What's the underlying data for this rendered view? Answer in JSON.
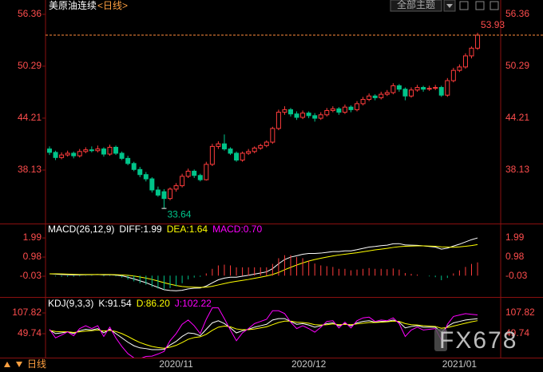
{
  "ui": {
    "toolbar": "全部主题",
    "footer": "日线",
    "watermark": "FX678"
  },
  "chart_data": [
    {
      "type": "candlestick",
      "title": "美原油连续",
      "subtitle": "<日线>",
      "categories": [
        null,
        null,
        null,
        null,
        null,
        null,
        null,
        null,
        null,
        null,
        null,
        null,
        null,
        null,
        null,
        null,
        null,
        null,
        null,
        null,
        null,
        "2020/11",
        null,
        null,
        null,
        null,
        null,
        null,
        null,
        null,
        null,
        null,
        null,
        null,
        null,
        null,
        null,
        null,
        null,
        null,
        null,
        null,
        null,
        "2020/12",
        null,
        null,
        null,
        null,
        null,
        null,
        null,
        null,
        null,
        null,
        null,
        null,
        null,
        null,
        null,
        null,
        null,
        null,
        null,
        null,
        null,
        null,
        null,
        null,
        "2021/01",
        null,
        null,
        null
      ],
      "open": [
        40.6,
        40.2,
        39.6,
        39.9,
        40.1,
        39.8,
        40.3,
        40.5,
        40.4,
        40.6,
        40.0,
        40.8,
        40.1,
        39.5,
        38.9,
        38.2,
        37.6,
        37.1,
        35.8,
        35.6,
        34.8,
        35.9,
        36.3,
        37.4,
        38.0,
        37.5,
        37.0,
        38.8,
        40.9,
        41.2,
        40.6,
        40.1,
        39.3,
        40.1,
        40.3,
        40.7,
        41.0,
        41.4,
        43.0,
        44.9,
        45.2,
        44.7,
        44.3,
        44.8,
        44.5,
        44.2,
        44.6,
        45.1,
        45.3,
        44.9,
        45.5,
        45.2,
        45.9,
        46.4,
        46.8,
        46.6,
        47.0,
        47.2,
        48.0,
        47.6,
        46.8,
        47.5,
        47.8,
        47.6,
        47.7,
        47.8,
        46.9,
        48.6,
        49.8,
        50.2,
        51.5,
        52.4
      ],
      "high": [
        40.9,
        40.4,
        40.2,
        40.4,
        40.3,
        40.6,
        40.8,
        40.9,
        41.0,
        40.8,
        41.1,
        41.0,
        40.3,
        39.8,
        39.1,
        38.5,
        37.9,
        37.3,
        36.2,
        35.9,
        36.1,
        36.6,
        37.7,
        38.3,
        38.2,
        37.7,
        39.1,
        41.2,
        41.5,
        42.3,
        40.8,
        40.3,
        40.3,
        40.6,
        40.9,
        41.2,
        41.6,
        43.2,
        45.2,
        45.6,
        45.4,
        45.0,
        45.1,
        45.0,
        44.8,
        44.9,
        45.4,
        45.6,
        45.5,
        45.8,
        45.7,
        46.2,
        46.7,
        47.1,
        47.0,
        47.3,
        47.5,
        48.3,
        48.2,
        47.8,
        47.8,
        48.1,
        48.0,
        48.0,
        48.1,
        48.0,
        48.9,
        50.1,
        50.5,
        51.8,
        52.6,
        54.2
      ],
      "low": [
        39.9,
        39.3,
        39.4,
        39.7,
        39.5,
        39.6,
        40.1,
        40.2,
        40.2,
        39.7,
        39.8,
        39.9,
        39.3,
        38.7,
        38.0,
        37.3,
        36.8,
        35.5,
        35.0,
        33.64,
        34.6,
        35.6,
        36.1,
        37.2,
        37.2,
        36.8,
        36.9,
        38.6,
        40.6,
        40.4,
        39.9,
        39.1,
        39.1,
        39.9,
        40.1,
        40.5,
        40.8,
        41.2,
        42.8,
        44.6,
        44.4,
        44.0,
        44.1,
        44.2,
        43.8,
        44.0,
        44.4,
        44.9,
        44.6,
        44.7,
        44.9,
        45.0,
        45.7,
        46.2,
        46.3,
        46.4,
        46.8,
        47.0,
        47.3,
        46.3,
        46.6,
        47.3,
        47.3,
        47.4,
        47.5,
        46.7,
        46.7,
        48.4,
        49.6,
        50.0,
        51.2,
        52.2
      ],
      "close": [
        40.2,
        39.6,
        39.9,
        40.1,
        39.8,
        40.3,
        40.5,
        40.4,
        40.6,
        40.0,
        40.8,
        40.1,
        39.5,
        38.9,
        38.2,
        37.6,
        37.1,
        35.8,
        35.2,
        34.8,
        35.9,
        36.3,
        37.4,
        38.0,
        37.5,
        37.0,
        38.8,
        40.9,
        41.2,
        40.6,
        40.1,
        39.3,
        40.1,
        40.3,
        40.7,
        41.0,
        41.4,
        43.0,
        44.9,
        45.2,
        44.7,
        44.3,
        44.8,
        44.5,
        44.2,
        44.6,
        45.1,
        45.3,
        44.9,
        45.5,
        45.2,
        45.9,
        46.4,
        46.8,
        46.6,
        47.0,
        47.2,
        48.0,
        47.6,
        46.8,
        47.5,
        47.8,
        47.6,
        47.7,
        47.8,
        46.9,
        48.6,
        49.8,
        50.2,
        51.5,
        52.4,
        53.93
      ],
      "up_color": "#ff3c3c",
      "down_color": "#00c48a",
      "ylim": [
        32.06,
        57.29
      ],
      "yticks": [
        56.36,
        50.29,
        44.21,
        38.13
      ]
    },
    {
      "type": "macd",
      "title": "MACD(26,12,9)",
      "ylim": [
        -1.04,
        2.33
      ],
      "yticks": [
        1.99,
        0.98,
        -0.03
      ],
      "up_color": "#ff3c3c",
      "down_color": "#00c48a",
      "series": [
        {
          "name": "DIFF:1.99",
          "color": "#ffffff",
          "values": [
            0.1,
            0.08,
            0.06,
            0.05,
            0.04,
            0.04,
            0.05,
            0.05,
            0.06,
            0.04,
            0.05,
            0.03,
            -0.01,
            -0.08,
            -0.17,
            -0.27,
            -0.37,
            -0.5,
            -0.62,
            -0.74,
            -0.78,
            -0.8,
            -0.77,
            -0.7,
            -0.66,
            -0.65,
            -0.55,
            -0.38,
            -0.22,
            -0.13,
            -0.08,
            -0.08,
            -0.03,
            0.02,
            0.08,
            0.14,
            0.2,
            0.37,
            0.63,
            0.85,
            0.98,
            1.05,
            1.13,
            1.17,
            1.17,
            1.19,
            1.23,
            1.27,
            1.27,
            1.31,
            1.31,
            1.37,
            1.44,
            1.51,
            1.54,
            1.58,
            1.61,
            1.68,
            1.69,
            1.62,
            1.61,
            1.6,
            1.57,
            1.54,
            1.51,
            1.4,
            1.45,
            1.56,
            1.66,
            1.78,
            1.9,
            1.99
          ]
        },
        {
          "name": "DEA:1.64",
          "color": "#ffff00",
          "values": [
            0.1,
            0.1,
            0.09,
            0.08,
            0.07,
            0.06,
            0.06,
            0.06,
            0.06,
            0.06,
            0.06,
            0.05,
            0.04,
            0.02,
            -0.02,
            -0.07,
            -0.13,
            -0.2,
            -0.28,
            -0.37,
            -0.45,
            -0.52,
            -0.57,
            -0.6,
            -0.61,
            -0.62,
            -0.61,
            -0.56,
            -0.49,
            -0.42,
            -0.35,
            -0.3,
            -0.25,
            -0.2,
            -0.14,
            -0.08,
            -0.02,
            0.06,
            0.17,
            0.31,
            0.44,
            0.56,
            0.67,
            0.77,
            0.85,
            0.92,
            0.98,
            1.04,
            1.09,
            1.13,
            1.17,
            1.21,
            1.26,
            1.31,
            1.36,
            1.4,
            1.44,
            1.49,
            1.53,
            1.55,
            1.56,
            1.57,
            1.57,
            1.56,
            1.55,
            1.52,
            1.51,
            1.5,
            1.52,
            1.55,
            1.59,
            1.64
          ]
        },
        {
          "name": "MACD:0.70",
          "color": "#ff00ff",
          "type": "bar",
          "values": [
            0.0,
            -0.04,
            -0.06,
            -0.06,
            -0.06,
            -0.04,
            -0.02,
            -0.02,
            0.0,
            -0.04,
            -0.02,
            -0.04,
            -0.1,
            -0.2,
            -0.3,
            -0.4,
            -0.48,
            -0.6,
            -0.68,
            -0.74,
            -0.66,
            -0.56,
            -0.4,
            -0.2,
            -0.1,
            -0.06,
            0.12,
            0.36,
            0.54,
            0.58,
            0.54,
            0.44,
            0.44,
            0.44,
            0.44,
            0.44,
            0.44,
            0.62,
            0.92,
            1.08,
            1.08,
            0.98,
            0.92,
            0.8,
            0.64,
            0.54,
            0.5,
            0.46,
            0.36,
            0.36,
            0.28,
            0.32,
            0.36,
            0.4,
            0.36,
            0.36,
            0.34,
            0.38,
            0.32,
            0.14,
            0.1,
            0.06,
            0.0,
            -0.04,
            -0.08,
            -0.24,
            -0.12,
            0.12,
            0.28,
            0.46,
            0.62,
            0.7
          ]
        }
      ]
    },
    {
      "type": "kdj",
      "title": "KDJ(9,3,3)",
      "ylim": [
        -12.8,
        143.6
      ],
      "yticks": [
        107.82,
        49.74
      ],
      "series": [
        {
          "name": "K:91.54",
          "color": "#ffffff",
          "values": [
            60,
            50,
            52,
            55,
            50,
            58,
            62,
            60,
            64,
            52,
            62,
            50,
            38,
            26,
            16,
            10,
            8,
            5,
            5,
            6,
            18,
            28,
            42,
            52,
            50,
            44,
            62,
            80,
            86,
            78,
            66,
            52,
            58,
            62,
            68,
            72,
            76,
            88,
            92,
            92,
            84,
            76,
            78,
            74,
            68,
            72,
            78,
            80,
            72,
            78,
            72,
            80,
            84,
            86,
            82,
            84,
            84,
            88,
            82,
            66,
            70,
            72,
            68,
            68,
            68,
            54,
            70,
            80,
            84,
            88,
            90,
            91.54
          ]
        },
        {
          "name": "D:86.20",
          "color": "#ffff00",
          "values": [
            59,
            56,
            55,
            55,
            53,
            55,
            57,
            58,
            60,
            57,
            59,
            56,
            50,
            42,
            33,
            25,
            19,
            14,
            11,
            9,
            12,
            17,
            25,
            34,
            39,
            41,
            48,
            59,
            68,
            71,
            69,
            63,
            61,
            61,
            63,
            66,
            69,
            75,
            81,
            85,
            85,
            82,
            81,
            79,
            75,
            74,
            75,
            77,
            75,
            76,
            75,
            77,
            79,
            81,
            81,
            82,
            83,
            85,
            84,
            78,
            75,
            74,
            72,
            71,
            70,
            65,
            67,
            71,
            75,
            79,
            83,
            86.2
          ]
        },
        {
          "name": "J:102.22",
          "color": "#ff00ff",
          "values": [
            62,
            38,
            46,
            55,
            44,
            64,
            72,
            64,
            72,
            42,
            68,
            38,
            14,
            -6,
            -18,
            -20,
            -14,
            -13,
            -7,
            0,
            30,
            50,
            76,
            88,
            72,
            50,
            90,
            122,
            122,
            92,
            60,
            30,
            52,
            64,
            78,
            84,
            90,
            114,
            114,
            106,
            82,
            64,
            72,
            64,
            54,
            68,
            84,
            86,
            66,
            82,
            66,
            86,
            94,
            96,
            84,
            88,
            86,
            94,
            78,
            42,
            60,
            68,
            60,
            62,
            64,
            32,
            76,
            98,
            102,
            106,
            104,
            102.22
          ]
        }
      ]
    }
  ]
}
